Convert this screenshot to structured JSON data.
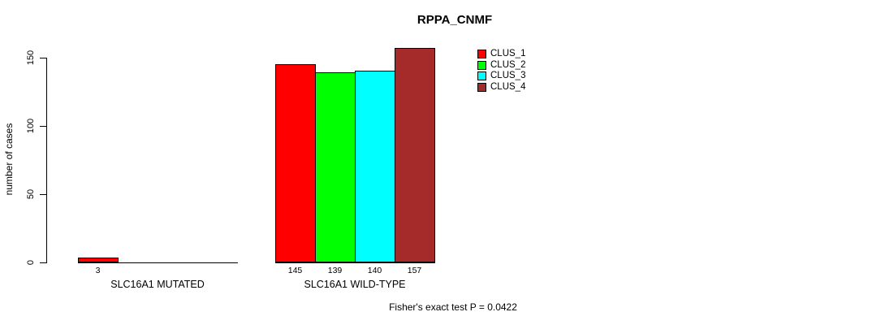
{
  "chart_data": {
    "type": "bar",
    "title": "RPPA_CNMF",
    "ylabel": "number of cases",
    "xlabel": "",
    "categories": [
      "SLC16A1 MUTATED",
      "SLC16A1 WILD-TYPE"
    ],
    "series": [
      {
        "name": "CLUS_1",
        "color": "#ff0000",
        "values": [
          3,
          145
        ]
      },
      {
        "name": "CLUS_2",
        "color": "#00ff00",
        "values": [
          0,
          139
        ]
      },
      {
        "name": "CLUS_3",
        "color": "#00ffff",
        "values": [
          0,
          140
        ]
      },
      {
        "name": "CLUS_4",
        "color": "#a52a2a",
        "values": [
          0,
          157
        ]
      }
    ],
    "yticks": [
      0,
      50,
      100,
      150
    ],
    "ylim": [
      0,
      157
    ],
    "grid": false,
    "legend": {
      "position": "top-right",
      "entries": [
        "CLUS_1",
        "CLUS_2",
        "CLUS_3",
        "CLUS_4"
      ]
    },
    "bar_value_labels_shown": [
      [
        3
      ],
      [
        145,
        139,
        140,
        157
      ]
    ],
    "annotation": "Fisher's exact test P = 0.0422"
  },
  "colors": {
    "background": "#ffffff",
    "axis": "#000000",
    "text": "#000000"
  }
}
